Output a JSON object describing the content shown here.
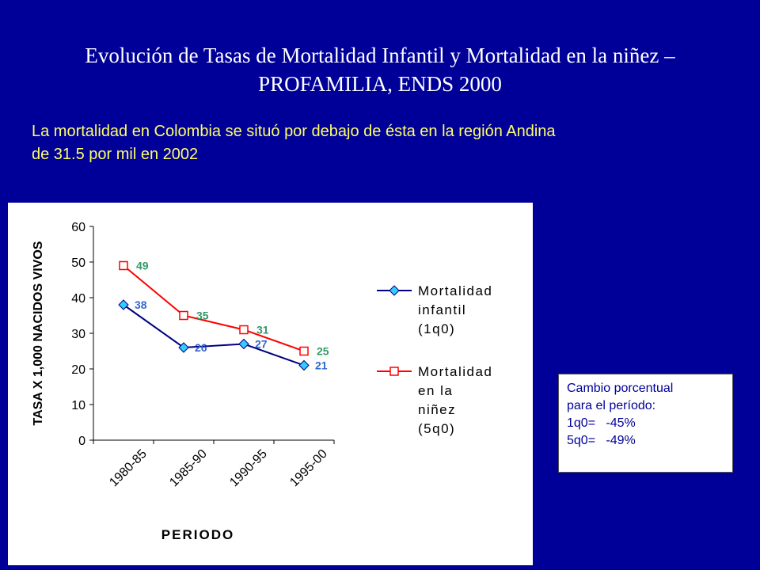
{
  "slide": {
    "title_line1": "Evolución de Tasas de Mortalidad Infantil y Mortalidad en la niñez –",
    "title_line2": "PROFAMILIA, ENDS 2000",
    "subtitle_line1": "La mortalidad en Colombia se situó por debajo de ésta en la región Andina",
    "subtitle_line2": "de 31.5 por mil en 2002"
  },
  "note": {
    "line1": "Cambio porcentual",
    "line2": "para el período:",
    "line3": "1q0=   -45%",
    "line4": "5q0=   -49%"
  },
  "colors": {
    "background": "#000099",
    "subtitle": "#ffff66",
    "infant_series": "#000080",
    "infant_marker": "#33ccff",
    "infant_label": "#3366cc",
    "childhood_series": "#ff0000",
    "childhood_label": "#339966"
  },
  "chart_data": {
    "type": "line",
    "title": "",
    "xlabel": "PERIODO",
    "ylabel": "TASA X 1,000 NACIDOS VIVOS",
    "categories": [
      "1980-85",
      "1985-90",
      "1990-95",
      "1995-00"
    ],
    "ylim": [
      0,
      60
    ],
    "yticks": [
      0,
      10,
      20,
      30,
      40,
      50,
      60
    ],
    "grid": false,
    "legend_position": "right",
    "series": [
      {
        "name_lines": [
          "Mortalidad",
          "infantil",
          "(1q0)"
        ],
        "values": [
          38,
          26,
          27,
          21
        ],
        "marker": "diamond"
      },
      {
        "name_lines": [
          "Mortalidad",
          "en la",
          "niñez",
          "(5q0)"
        ],
        "values": [
          49,
          35,
          31,
          25
        ],
        "marker": "square"
      }
    ]
  }
}
